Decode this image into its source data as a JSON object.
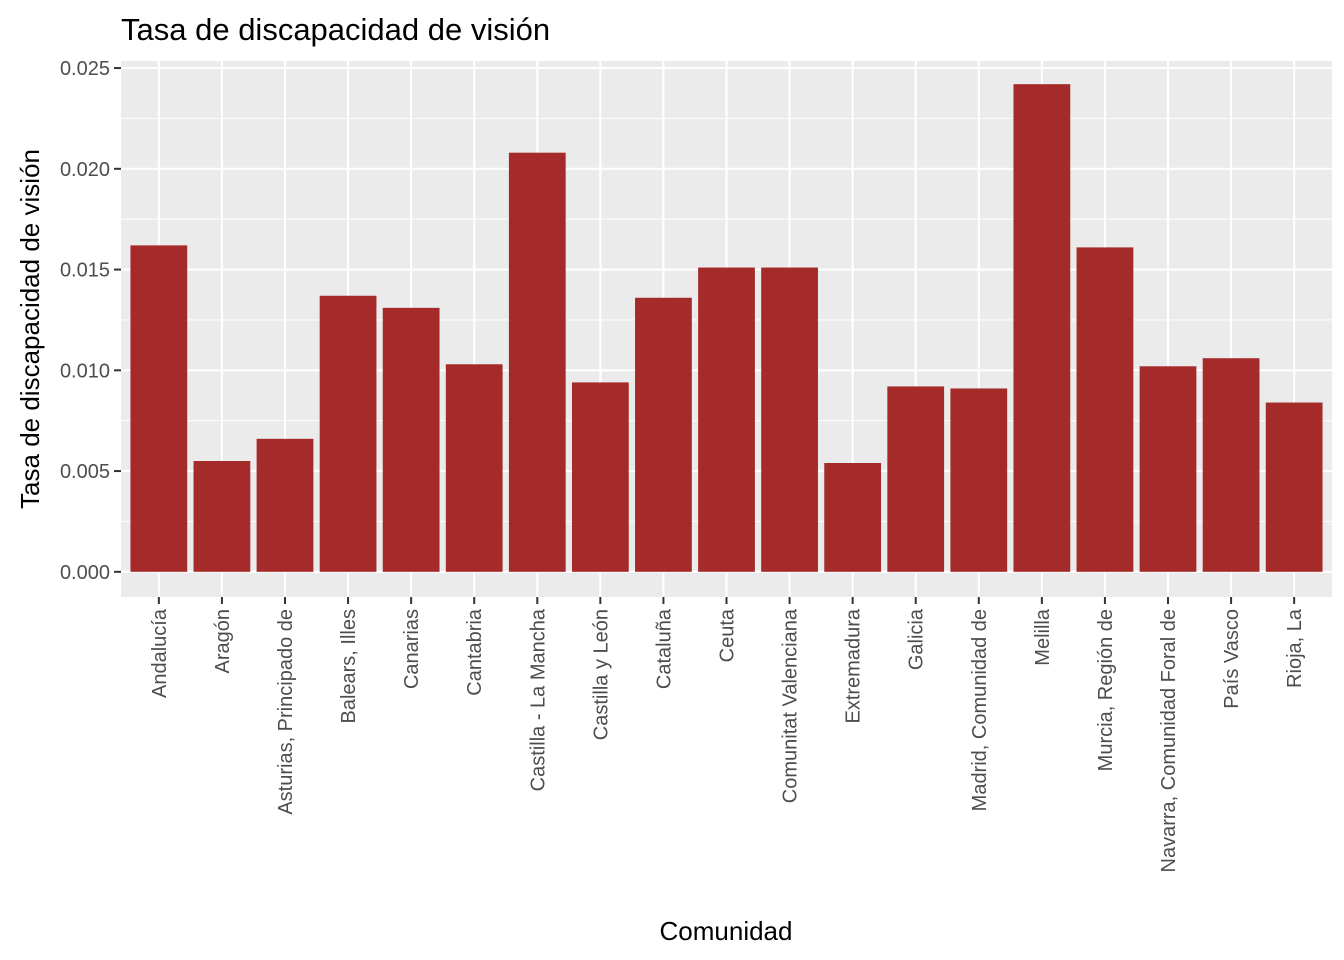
{
  "chart_data": {
    "type": "bar",
    "title": "Tasa de discapacidad de visión",
    "xlabel": "Comunidad",
    "ylabel": "Tasa de discapacidad de visión",
    "ylim": [
      -0.00125,
      0.02535
    ],
    "yticks": [
      0.0,
      0.005,
      0.01,
      0.015,
      0.02,
      0.025
    ],
    "ytick_labels": [
      "0.000",
      "0.005",
      "0.010",
      "0.015",
      "0.020",
      "0.025"
    ],
    "grid": true,
    "legend": "none",
    "bar_color": "#A52A2A",
    "panel_color": "#EBEBEB",
    "categories": [
      "Andalucía",
      "Aragón",
      "Asturias, Principado de",
      "Balears, Illes",
      "Canarias",
      "Cantabria",
      "Castilla - La Mancha",
      "Castilla y León",
      "Cataluña",
      "Ceuta",
      "Comunitat Valenciana",
      "Extremadura",
      "Galicia",
      "Madrid, Comunidad de",
      "Melilla",
      "Murcia, Región de",
      "Navarra, Comunidad Foral de",
      "País Vasco",
      "Rioja, La"
    ],
    "values": [
      0.0162,
      0.0055,
      0.0066,
      0.0137,
      0.0131,
      0.0103,
      0.0208,
      0.0094,
      0.0136,
      0.0151,
      0.0151,
      0.0054,
      0.0092,
      0.0091,
      0.0242,
      0.0161,
      0.0102,
      0.0106,
      0.0084
    ]
  }
}
